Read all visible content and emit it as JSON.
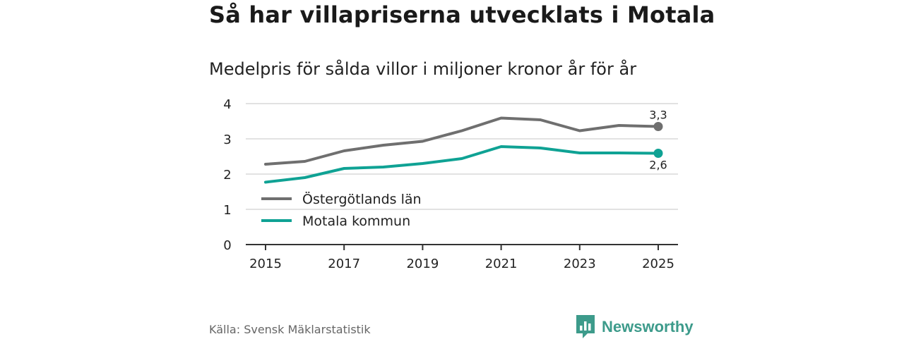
{
  "header": {
    "title": "Så har villapriserna utvecklats i Motala",
    "subtitle": "Medelpris för sålda villor i miljoner kronor år för år"
  },
  "chart_data": {
    "type": "line",
    "title": "Så har villapriserna utvecklats i Motala",
    "subtitle": "Medelpris för sålda villor i miljoner kronor år för år",
    "xlabel": "",
    "ylabel": "",
    "x": [
      2015,
      2016,
      2017,
      2018,
      2019,
      2020,
      2021,
      2022,
      2023,
      2024,
      2025
    ],
    "xticks": [
      2015,
      2017,
      2019,
      2021,
      2023,
      2025
    ],
    "yticks": [
      0,
      1,
      2,
      3,
      4
    ],
    "ylim": [
      0,
      4
    ],
    "xlim": [
      2015,
      2025
    ],
    "grid": "horizontal",
    "legend": "bottom-left",
    "series": [
      {
        "name": "Östergötlands län",
        "color": "#6f6f6f",
        "values": [
          2.28,
          2.36,
          2.66,
          2.82,
          2.93,
          3.23,
          3.59,
          3.54,
          3.23,
          3.38,
          3.35
        ],
        "end_label": "3,3",
        "end_label_position": "above"
      },
      {
        "name": "Motala kommun",
        "color": "#0fa294",
        "values": [
          1.77,
          1.9,
          2.16,
          2.2,
          2.3,
          2.44,
          2.78,
          2.74,
          2.6,
          2.6,
          2.59
        ],
        "end_label": "2,6",
        "end_label_position": "below"
      }
    ]
  },
  "footer": {
    "source": "Källa: Svensk Mäklarstatistik",
    "brand_name": "Newsworthy",
    "brand_icon": "newsworthy-logo-icon",
    "brand_color": "#3d9b8b"
  }
}
